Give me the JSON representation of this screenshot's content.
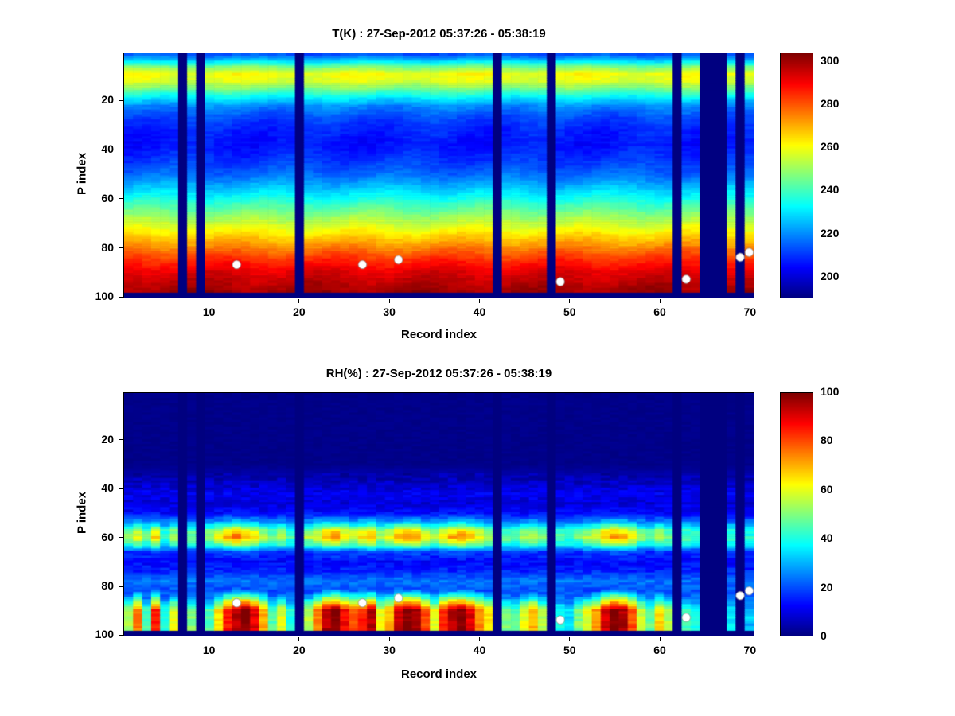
{
  "chart_data": [
    {
      "type": "heatmap",
      "title": "T(K) : 27-Sep-2012 05:37:26 - 05:38:19",
      "xlabel": "Record index",
      "ylabel": "P index",
      "x_range": [
        1,
        70
      ],
      "y_range": [
        1,
        100
      ],
      "x_ticks": [
        10,
        20,
        30,
        40,
        50,
        60,
        70
      ],
      "y_ticks": [
        20,
        40,
        60,
        80,
        100
      ],
      "y_axis_reversed": true,
      "colormap": "jet",
      "grid": false,
      "colorbar": {
        "min": 190,
        "max": 304,
        "ticks": [
          200,
          220,
          240,
          260,
          280,
          300
        ]
      },
      "missing_records": [
        7,
        9,
        20,
        42,
        48,
        62,
        65,
        66,
        67,
        69
      ],
      "bottom_gap_rows": 2,
      "profile": {
        "p": [
          1,
          3,
          6,
          9,
          12,
          15,
          18,
          22,
          27,
          32,
          38,
          44,
          50,
          55,
          60,
          65,
          70,
          75,
          80,
          85,
          90,
          95,
          98,
          100
        ],
        "value": [
          214,
          224,
          246,
          260,
          257,
          246,
          234,
          220,
          212,
          208,
          206,
          210,
          216,
          225,
          235,
          245,
          255,
          265,
          275,
          285,
          293,
          298,
          300,
          300
        ]
      },
      "markers": {
        "color": "#ffffff",
        "points": [
          [
            13,
            87
          ],
          [
            27,
            87
          ],
          [
            31,
            85
          ],
          [
            49,
            94
          ],
          [
            63,
            93
          ],
          [
            69,
            84
          ],
          [
            70,
            82
          ]
        ]
      }
    },
    {
      "type": "heatmap",
      "title": "RH(%) : 27-Sep-2012 05:37:26 - 05:38:19",
      "xlabel": "Record index",
      "ylabel": "P index",
      "x_range": [
        1,
        70
      ],
      "y_range": [
        1,
        100
      ],
      "x_ticks": [
        10,
        20,
        30,
        40,
        50,
        60,
        70
      ],
      "y_ticks": [
        20,
        40,
        60,
        80,
        100
      ],
      "y_axis_reversed": true,
      "colormap": "jet",
      "grid": false,
      "colorbar": {
        "min": 0,
        "max": 100,
        "ticks": [
          0,
          20,
          40,
          60,
          80,
          100
        ]
      },
      "missing_records": [
        7,
        9,
        20,
        42,
        48,
        62,
        65,
        66,
        67,
        69
      ],
      "bottom_gap_rows": 2,
      "profile": {
        "p": [
          1,
          30,
          38,
          42,
          46,
          50,
          54,
          57,
          60,
          63,
          66,
          70,
          74,
          78,
          82,
          86,
          90,
          94,
          98,
          100
        ],
        "value": [
          1,
          1,
          7,
          11,
          9,
          13,
          28,
          48,
          55,
          42,
          18,
          13,
          16,
          24,
          20,
          24,
          30,
          34,
          26,
          15
        ]
      },
      "column_mid_scale": [
        1.0,
        1.1,
        0.9,
        1.2,
        0.8,
        1.0,
        1.0,
        0.9,
        1.0,
        1.0,
        1.1,
        1.3,
        1.4,
        1.3,
        1.2,
        1.0,
        0.9,
        1.0,
        0.8,
        1.0,
        1.0,
        1.1,
        1.3,
        1.35,
        1.2,
        1.1,
        1.2,
        1.3,
        1.0,
        1.1,
        1.3,
        1.35,
        1.3,
        1.1,
        1.0,
        1.2,
        1.3,
        1.35,
        1.25,
        1.1,
        1.0,
        1.0,
        0.9,
        0.85,
        1.0,
        1.05,
        0.95,
        1.0,
        0.85,
        0.8,
        0.9,
        1.0,
        1.05,
        1.25,
        1.35,
        1.3,
        1.15,
        0.95,
        0.85,
        1.05,
        0.9,
        1.0,
        0.85,
        0.8,
        1.0,
        1.0,
        1.0,
        0.8,
        1.0,
        0.75
      ],
      "column_surface_max": [
        55,
        75,
        45,
        85,
        40,
        60,
        0,
        50,
        0,
        45,
        65,
        85,
        95,
        100,
        90,
        70,
        45,
        60,
        40,
        0,
        55,
        75,
        95,
        100,
        88,
        80,
        85,
        95,
        60,
        70,
        92,
        100,
        95,
        80,
        60,
        85,
        95,
        100,
        90,
        75,
        65,
        0,
        50,
        45,
        60,
        70,
        55,
        0,
        40,
        35,
        50,
        60,
        72,
        92,
        100,
        95,
        80,
        58,
        48,
        66,
        55,
        0,
        45,
        40,
        0,
        0,
        0,
        35,
        0,
        30
      ],
      "markers": {
        "color": "#ffffff",
        "points": [
          [
            13,
            87
          ],
          [
            27,
            87
          ],
          [
            31,
            85
          ],
          [
            49,
            94
          ],
          [
            63,
            93
          ],
          [
            69,
            84
          ],
          [
            70,
            82
          ]
        ]
      }
    }
  ]
}
